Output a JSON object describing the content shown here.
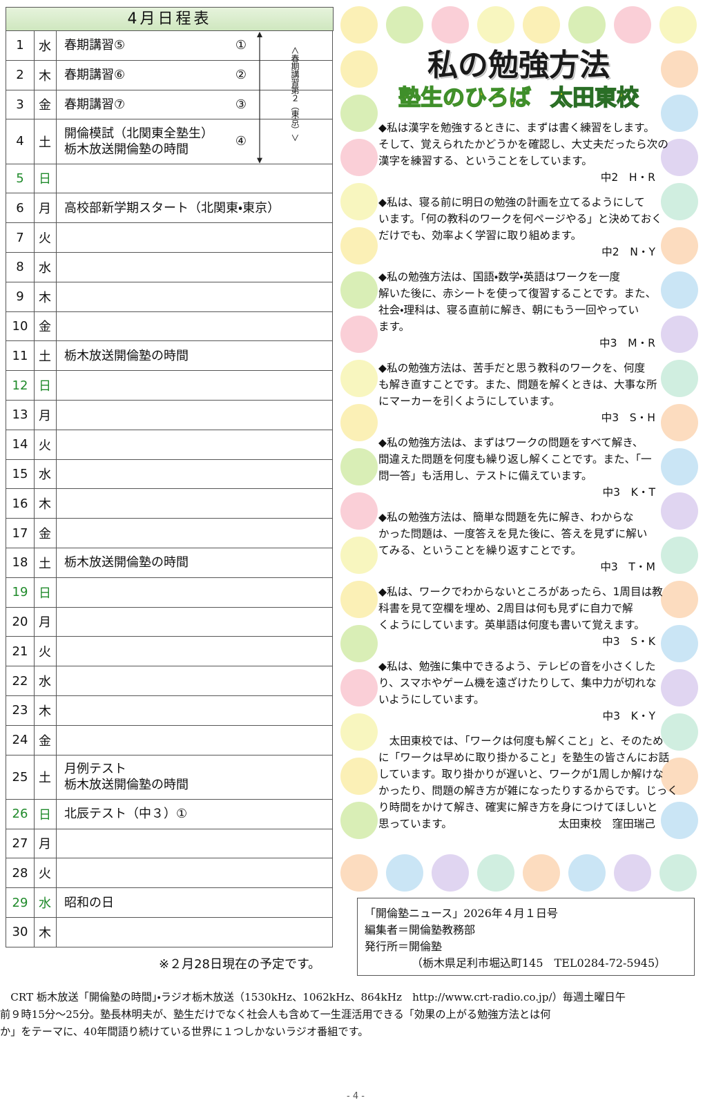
{
  "schedule": {
    "title": "4月日程表",
    "rows": [
      {
        "date": "1",
        "day": "水",
        "events": [
          "春期講習⑤"
        ],
        "mark": "①"
      },
      {
        "date": "2",
        "day": "木",
        "events": [
          "春期講習⑥"
        ],
        "mark": "②"
      },
      {
        "date": "3",
        "day": "金",
        "events": [
          "春期講習⑦"
        ],
        "mark": "③"
      },
      {
        "date": "4",
        "day": "土",
        "events": [
          "開倫模試（北関東全塾生）",
          "栃木放送開倫塾の時間"
        ],
        "mark": "④"
      },
      {
        "date": "5",
        "day": "日",
        "holiday": true
      },
      {
        "date": "6",
        "day": "月",
        "events": [
          "高校部新学期スタート（北関東・東京）"
        ]
      },
      {
        "date": "7",
        "day": "火"
      },
      {
        "date": "8",
        "day": "水"
      },
      {
        "date": "9",
        "day": "木"
      },
      {
        "date": "10",
        "day": "金"
      },
      {
        "date": "11",
        "day": "土",
        "events": [
          "栃木放送開倫塾の時間"
        ]
      },
      {
        "date": "12",
        "day": "日",
        "holiday": true
      },
      {
        "date": "13",
        "day": "月"
      },
      {
        "date": "14",
        "day": "火"
      },
      {
        "date": "15",
        "day": "水"
      },
      {
        "date": "16",
        "day": "木"
      },
      {
        "date": "17",
        "day": "金"
      },
      {
        "date": "18",
        "day": "土",
        "events": [
          "栃木放送開倫塾の時間"
        ]
      },
      {
        "date": "19",
        "day": "日",
        "holiday": true
      },
      {
        "date": "20",
        "day": "月"
      },
      {
        "date": "21",
        "day": "火"
      },
      {
        "date": "22",
        "day": "水"
      },
      {
        "date": "23",
        "day": "木"
      },
      {
        "date": "24",
        "day": "金"
      },
      {
        "date": "25",
        "day": "土",
        "events": [
          "月例テスト",
          "栃木放送開倫塾の時間"
        ]
      },
      {
        "date": "26",
        "day": "日",
        "events": [
          "北辰テスト（中３）①"
        ],
        "holiday": true
      },
      {
        "date": "27",
        "day": "月"
      },
      {
        "date": "28",
        "day": "火"
      },
      {
        "date": "29",
        "day": "水",
        "events": [
          "昭和の日"
        ],
        "holiday": true
      },
      {
        "date": "30",
        "day": "木"
      }
    ],
    "bracket_label": "＜春期講習第２（東京）＞",
    "note": "※２月28日現在の予定です。"
  },
  "column": {
    "title": "私の勉強方法",
    "subtitle": "塾生のひろば",
    "school": "太田東校",
    "entries": [
      {
        "lines": [
          "◆私は漢字を勉強するときに、まずは書く練習をします。",
          "そして、覚えられたかどうかを確認し、大丈夫だったら次の",
          "漢字を練習する、ということをしています。"
        ],
        "author": "中2　H・R"
      },
      {
        "lines": [
          "◆私は、寝る前に明日の勉強の計画を立てるようにして",
          "います。「何の教科のワークを何ページやる」と決めておく",
          "だけでも、効率よく学習に取り組めます。"
        ],
        "author": "中2　N・Y"
      },
      {
        "lines": [
          "◆私の勉強方法は、国語・数学・英語はワークを一度",
          "解いた後に、赤シートを使って復習することです。また、",
          "社会・理科は、寝る直前に解き、朝にもう一回やってい",
          "ます。"
        ],
        "author": "中3　M・R"
      },
      {
        "lines": [
          "◆私の勉強方法は、苦手だと思う教科のワークを、何度",
          "も解き直すことです。また、問題を解くときは、大事な所",
          "にマーカーを引くようにしています。"
        ],
        "author": "中3　S・H"
      },
      {
        "lines": [
          "◆私の勉強方法は、まずはワークの問題をすべて解き、",
          "間違えた問題を何度も繰り返し解くことです。また、「一",
          "問一答」も活用し、テストに備えています。"
        ],
        "author": "中3　K・T"
      },
      {
        "lines": [
          "◆私の勉強方法は、簡単な問題を先に解き、わからな",
          "かった問題は、一度答えを見た後に、答えを見ずに解い",
          "てみる、ということを繰り返すことです。"
        ],
        "author": "中3　T・M"
      },
      {
        "lines": [
          "◆私は、ワークでわからないところがあったら、1周目は教",
          "科書を見て空欄を埋め、2周目は何も見ずに自力で解",
          "くようにしています。英単語は何度も書いて覚えます。"
        ],
        "author": "中3　S・K"
      },
      {
        "lines": [
          "◆私は、勉強に集中できるよう、テレビの音を小さくした",
          "り、スマホやゲーム機を遠ざけたりして、集中力が切れな",
          "いようにしています。"
        ],
        "author": "中3　K・Y"
      }
    ],
    "closing": [
      "　太田東校では、「ワークは何度も解くこと」と、そのため",
      "に「ワークは早めに取り掛かること」を塾生の皆さんにお話",
      "しています。取り掛かりが遅いと、ワークが1周しか解けな",
      "かったり、問題の解き方が雑になったりするからです。じっく",
      "り時間をかけて解き、確実に解き方を身につけてほしいと",
      "思っています。"
    ],
    "signature": "太田東校　窪田瑞己"
  },
  "colophon": [
    "「開倫塾ニュース」2026年４月１日号",
    "編集者＝開倫塾教務部",
    "発行所＝開倫塾",
    "（栃木県足利市堀込町145　TEL0284-72-5945）"
  ],
  "footer": {
    "lines": [
      "　CRT 栃木放送「開倫塾の時間」・ラジオ栃木放送（1530kHz、1062kHz、864kHz　http://www.crt-radio.co.jp/）毎週土曜日午",
      "前９時15分～25分。塾長林明夫が、塾生だけでなく社会人も含めて一生涯活用できる「効果の上がる勉強方法とは何",
      "か」をテーマに、40年間語り続けている世界に１つしかないラジオ番組です。"
    ],
    "page": "- 4 -"
  }
}
